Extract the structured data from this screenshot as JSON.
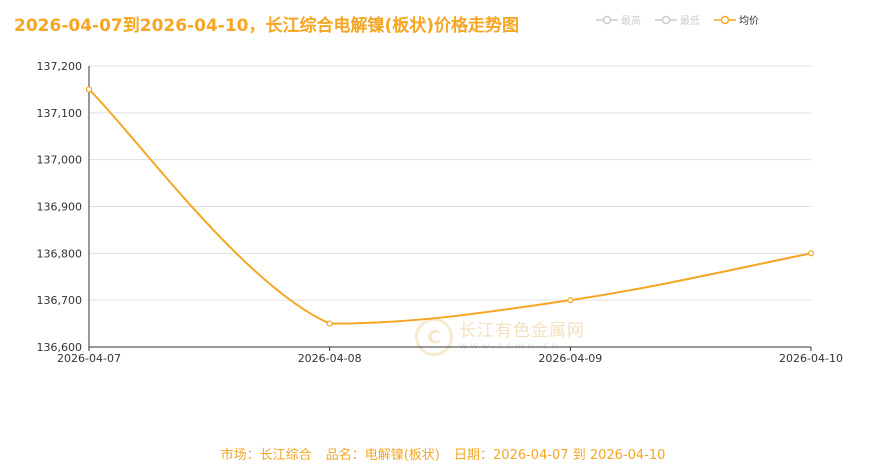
{
  "title": "2026-04-07到2026-04-10，长江综合电解镍(板状)价格走势图",
  "legend": [
    {
      "label": "最高",
      "color": "#cccccc"
    },
    {
      "label": "最低",
      "color": "#cccccc"
    },
    {
      "label": "均价",
      "color": "#f5a623"
    }
  ],
  "watermark": {
    "name": "长江有色金属网",
    "url": "www.ccmn.cn",
    "logo_letter": "C"
  },
  "footer": {
    "market": "市场：长江综合",
    "product": "品名：电解镍(板状)",
    "date": "日期：2026-04-07 到 2026-04-10"
  },
  "chart_data": {
    "type": "line",
    "categories": [
      "2026-04-07",
      "2026-04-08",
      "2026-04-09",
      "2026-04-10"
    ],
    "series": [
      {
        "name": "均价",
        "values": [
          137150,
          136650,
          136700,
          136800
        ],
        "color": "#f5a623",
        "smooth": true
      }
    ],
    "ylim": [
      136600,
      137200
    ],
    "yticks": [
      136600,
      136700,
      136800,
      136900,
      137000,
      137100,
      137200
    ],
    "ytick_labels": [
      "136,600",
      "136,700",
      "136,800",
      "136,900",
      "137,000",
      "137,100",
      "137,200"
    ],
    "grid": true,
    "legend_position": "top-right"
  }
}
